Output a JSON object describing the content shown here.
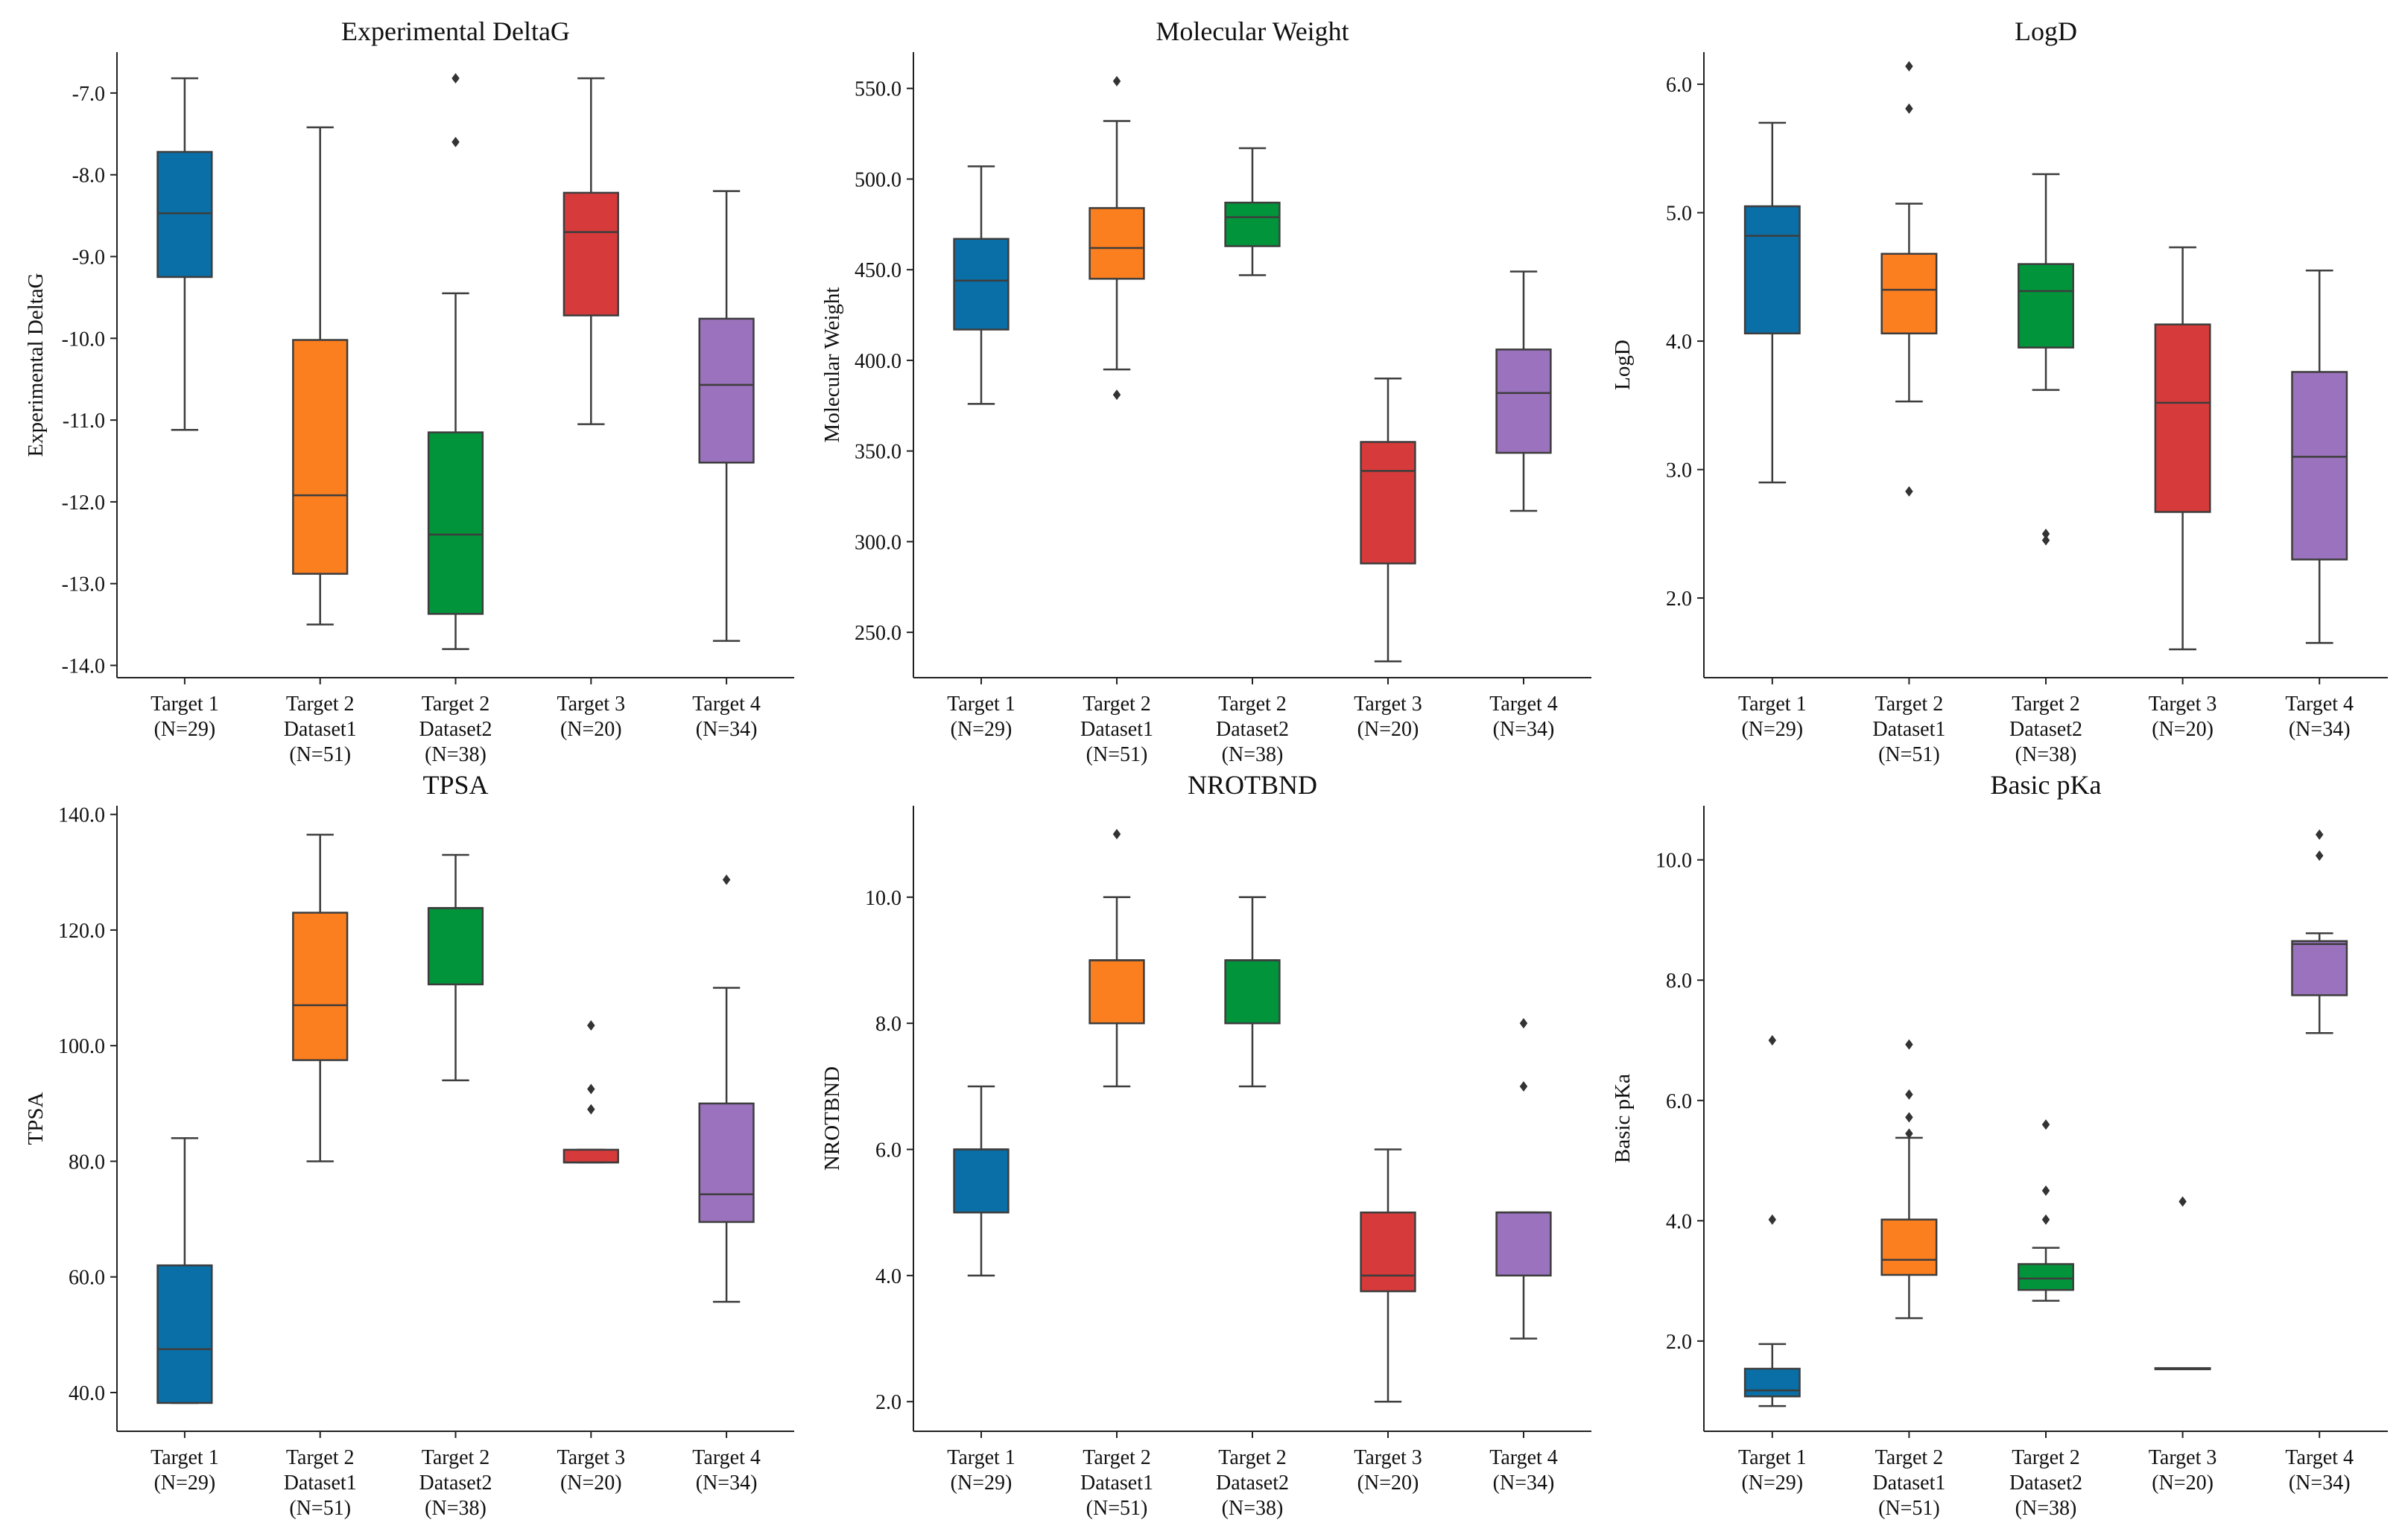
{
  "figure": {
    "category_labels": [
      [
        "Target 1",
        "(N=29)"
      ],
      [
        "Target 2",
        "Dataset1",
        "(N=51)"
      ],
      [
        "Target 2",
        "Dataset2",
        "(N=38)"
      ],
      [
        "Target 3",
        "(N=20)"
      ],
      [
        "Target 4",
        "(N=34)"
      ]
    ],
    "colors": [
      "#0a6fa6",
      "#fc7f1f",
      "#02943b",
      "#d73a3a",
      "#9b72bd"
    ]
  },
  "chart_data": [
    {
      "type": "box",
      "title": "Experimental DeltaG",
      "ylabel": "Experimental DeltaG",
      "ylim": [
        -14.15,
        -6.5
      ],
      "yticks": [
        -7.0,
        -8.0,
        -9.0,
        -10.0,
        -11.0,
        -12.0,
        -13.0,
        -14.0
      ],
      "tick_labels": [
        "-7.0",
        "-8.0",
        "-9.0",
        "-10.0",
        "-11.0",
        "-12.0",
        "-13.0",
        "-14.0"
      ],
      "boxes": [
        {
          "whislo": -11.12,
          "q1": -9.25,
          "med": -8.47,
          "q3": -7.72,
          "whishi": -6.82,
          "fliers": []
        },
        {
          "whislo": -13.5,
          "q1": -12.88,
          "med": -11.92,
          "q3": -10.02,
          "whishi": -7.42,
          "fliers": []
        },
        {
          "whislo": -13.8,
          "q1": -13.37,
          "med": -12.4,
          "q3": -11.15,
          "whishi": -9.45,
          "fliers": [
            -6.82,
            -7.6
          ]
        },
        {
          "whislo": -11.05,
          "q1": -9.72,
          "med": -8.7,
          "q3": -8.22,
          "whishi": -6.82,
          "fliers": []
        },
        {
          "whislo": -13.7,
          "q1": -11.52,
          "med": -10.57,
          "q3": -9.76,
          "whishi": -8.2,
          "fliers": []
        }
      ]
    },
    {
      "type": "box",
      "title": "Molecular Weight",
      "ylabel": "Molecular Weight",
      "ylim": [
        225,
        570
      ],
      "yticks": [
        250,
        300,
        350,
        400,
        450,
        500,
        550
      ],
      "tick_labels": [
        "250.0",
        "300.0",
        "350.0",
        "400.0",
        "450.0",
        "500.0",
        "550.0"
      ],
      "boxes": [
        {
          "whislo": 376,
          "q1": 417,
          "med": 444,
          "q3": 467,
          "whishi": 507,
          "fliers": []
        },
        {
          "whislo": 395,
          "q1": 445,
          "med": 462,
          "q3": 484,
          "whishi": 532,
          "fliers": [
            381,
            554
          ]
        },
        {
          "whislo": 447,
          "q1": 463,
          "med": 479,
          "q3": 487,
          "whishi": 517,
          "fliers": []
        },
        {
          "whislo": 234,
          "q1": 288,
          "med": 339,
          "q3": 355,
          "whishi": 390,
          "fliers": []
        },
        {
          "whislo": 317,
          "q1": 349,
          "med": 382,
          "q3": 406,
          "whishi": 449,
          "fliers": []
        }
      ]
    },
    {
      "type": "box",
      "title": "LogD",
      "ylabel": "LogD",
      "ylim": [
        1.38,
        6.25
      ],
      "yticks": [
        2.0,
        3.0,
        4.0,
        5.0,
        6.0
      ],
      "tick_labels": [
        "2.0",
        "3.0",
        "4.0",
        "5.0",
        "6.0"
      ],
      "boxes": [
        {
          "whislo": 2.9,
          "q1": 4.06,
          "med": 4.82,
          "q3": 5.05,
          "whishi": 5.7,
          "fliers": []
        },
        {
          "whislo": 3.53,
          "q1": 4.06,
          "med": 4.4,
          "q3": 4.68,
          "whishi": 5.07,
          "fliers": [
            2.83,
            5.81,
            6.14
          ]
        },
        {
          "whislo": 3.62,
          "q1": 3.95,
          "med": 4.39,
          "q3": 4.6,
          "whishi": 5.3,
          "fliers": [
            2.45,
            2.5
          ]
        },
        {
          "whislo": 1.6,
          "q1": 2.67,
          "med": 3.52,
          "q3": 4.13,
          "whishi": 4.73,
          "fliers": []
        },
        {
          "whislo": 1.65,
          "q1": 2.3,
          "med": 3.1,
          "q3": 3.76,
          "whishi": 4.55,
          "fliers": []
        }
      ]
    },
    {
      "type": "box",
      "title": "TPSA",
      "ylabel": "TPSA",
      "ylim": [
        33.3,
        141.5
      ],
      "yticks": [
        40,
        60,
        80,
        100,
        120,
        140
      ],
      "tick_labels": [
        "40.0",
        "60.0",
        "80.0",
        "100.0",
        "120.0",
        "140.0"
      ],
      "boxes": [
        {
          "whislo": 38.2,
          "q1": 38.2,
          "med": 47.5,
          "q3": 62,
          "whishi": 84,
          "fliers": []
        },
        {
          "whislo": 80,
          "q1": 97.5,
          "med": 107,
          "q3": 123,
          "whishi": 136.5,
          "fliers": []
        },
        {
          "whislo": 94,
          "q1": 110.6,
          "med": 123.8,
          "q3": 123.8,
          "whishi": 133,
          "fliers": []
        },
        {
          "whislo": 79.8,
          "q1": 79.8,
          "med": 79.8,
          "q3": 82,
          "whishi": 82,
          "fliers": [
            89,
            92.5,
            103.5
          ]
        },
        {
          "whislo": 55.7,
          "q1": 69.5,
          "med": 74.3,
          "q3": 90,
          "whishi": 110,
          "fliers": [
            128.7
          ]
        }
      ]
    },
    {
      "type": "box",
      "title": "NROTBND",
      "ylabel": "NROTBND",
      "ylim": [
        1.53,
        11.45
      ],
      "yticks": [
        2,
        4,
        6,
        8,
        10
      ],
      "tick_labels": [
        "2.0",
        "4.0",
        "6.0",
        "8.0",
        "10.0"
      ],
      "boxes": [
        {
          "whislo": 4,
          "q1": 5,
          "med": 6,
          "q3": 6,
          "whishi": 7,
          "fliers": []
        },
        {
          "whislo": 7,
          "q1": 8,
          "med": 9,
          "q3": 9,
          "whishi": 10,
          "fliers": [
            11
          ]
        },
        {
          "whislo": 7,
          "q1": 8,
          "med": 9,
          "q3": 9,
          "whishi": 10,
          "fliers": []
        },
        {
          "whislo": 2,
          "q1": 3.75,
          "med": 4,
          "q3": 5,
          "whishi": 6,
          "fliers": []
        },
        {
          "whislo": 3,
          "q1": 4,
          "med": 5,
          "q3": 5,
          "whishi": 5,
          "fliers": [
            7,
            8
          ]
        }
      ]
    },
    {
      "type": "box",
      "title": "Basic pKa",
      "ylabel": "Basic pKa",
      "ylim": [
        0.5,
        10.9
      ],
      "yticks": [
        2,
        4,
        6,
        8,
        10
      ],
      "tick_labels": [
        "2.0",
        "4.0",
        "6.0",
        "8.0",
        "10.0"
      ],
      "boxes": [
        {
          "whislo": 0.92,
          "q1": 1.08,
          "med": 1.18,
          "q3": 1.54,
          "whishi": 1.95,
          "fliers": [
            4.02,
            7.0
          ]
        },
        {
          "whislo": 2.38,
          "q1": 3.1,
          "med": 3.35,
          "q3": 4.02,
          "whishi": 5.38,
          "fliers": [
            5.45,
            5.72,
            6.1,
            6.93
          ]
        },
        {
          "whislo": 2.67,
          "q1": 2.85,
          "med": 3.04,
          "q3": 3.28,
          "whishi": 3.55,
          "fliers": [
            4.02,
            4.5,
            5.6
          ]
        },
        {
          "whislo": 1.55,
          "q1": 1.55,
          "med": 1.55,
          "q3": 1.55,
          "whishi": 1.55,
          "fliers": [
            4.32
          ]
        },
        {
          "whislo": 7.12,
          "q1": 7.75,
          "med": 8.6,
          "q3": 8.65,
          "whishi": 8.78,
          "fliers": [
            10.07,
            10.42
          ]
        }
      ]
    }
  ]
}
